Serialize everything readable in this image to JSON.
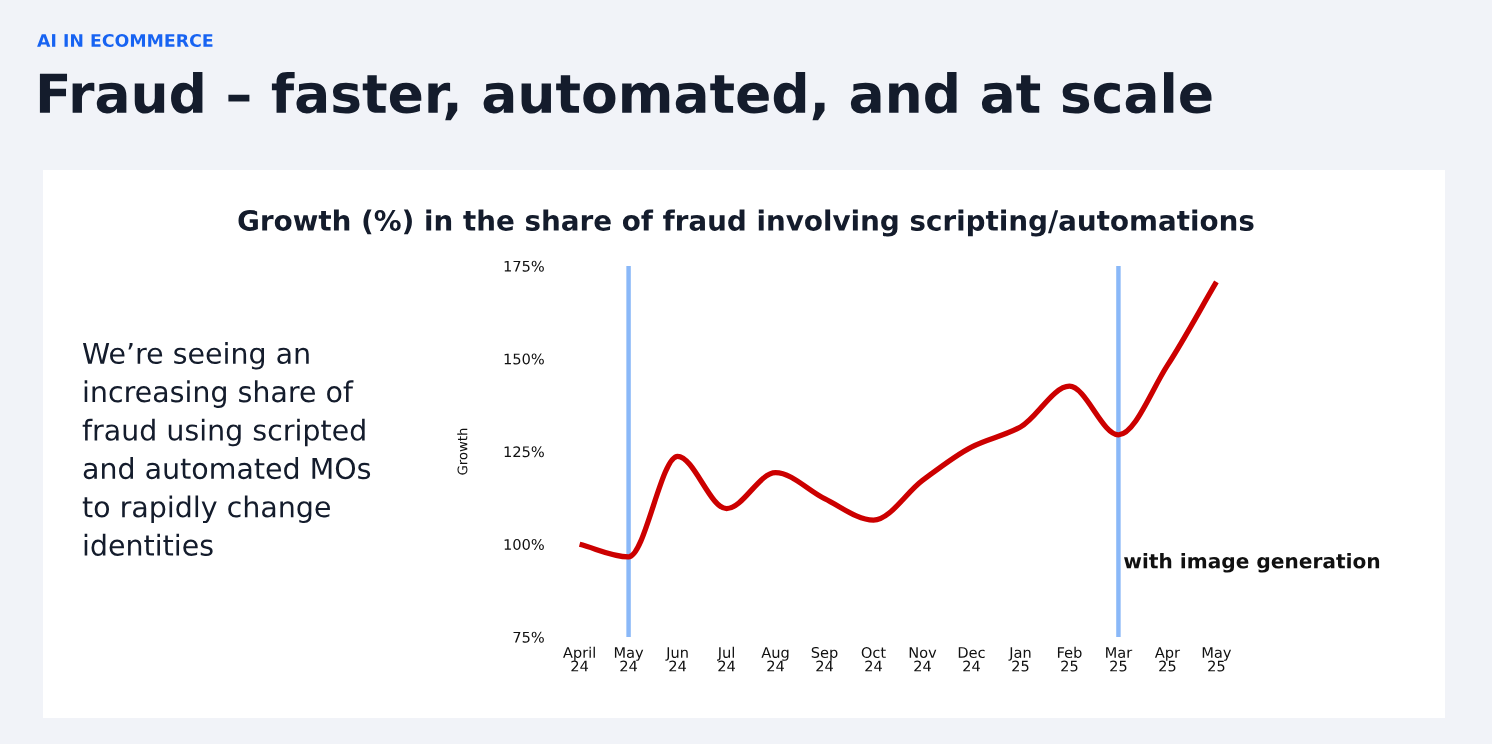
{
  "chart_data": {
    "type": "line",
    "title": "Growth (%) in the share of fraud involving scripting/automations",
    "ylabel": "Growth",
    "categories": [
      "April\n24",
      "May\n24",
      "Jun\n24",
      "Jul\n24",
      "Aug\n24",
      "Sep\n24",
      "Oct\n24",
      "Nov\n24",
      "Dec\n24",
      "Jan\n25",
      "Feb\n25",
      "Mar\n25",
      "Apr\n25",
      "May\n25"
    ],
    "series": [
      {
        "color": "#cc0000",
        "values": [
          100,
          96.6,
          123.7,
          109.6,
          119.3,
          112.3,
          106.5,
          117.2,
          126.2,
          131.6,
          142.6,
          129.5,
          148.2,
          170.7
        ]
      }
    ],
    "ylim": [
      75,
      175
    ],
    "yticks": [
      {
        "value": 75,
        "label": "75%"
      },
      {
        "value": 100,
        "label": "100%"
      },
      {
        "value": 125,
        "label": "125%"
      },
      {
        "value": 150,
        "label": "150%"
      },
      {
        "value": 175,
        "label": "175%"
      }
    ],
    "grid": false,
    "marker": "none",
    "line_style": "solid",
    "ref_lines": [
      {
        "axis": "x",
        "value": "May\n24",
        "label": null,
        "color": "#8ab8f8"
      },
      {
        "axis": "x",
        "value": "Mar\n25",
        "label": "with image generation",
        "color": "#8ab8f8"
      }
    ],
    "annotations": [
      "AI IN ECOMMERCE",
      "Fraud – faster, automated, and at scale",
      "We’re seeing an\nincreasing share of\nfraud using scripted\nand automated MOs\nto rapidly change\nidentities"
    ]
  }
}
